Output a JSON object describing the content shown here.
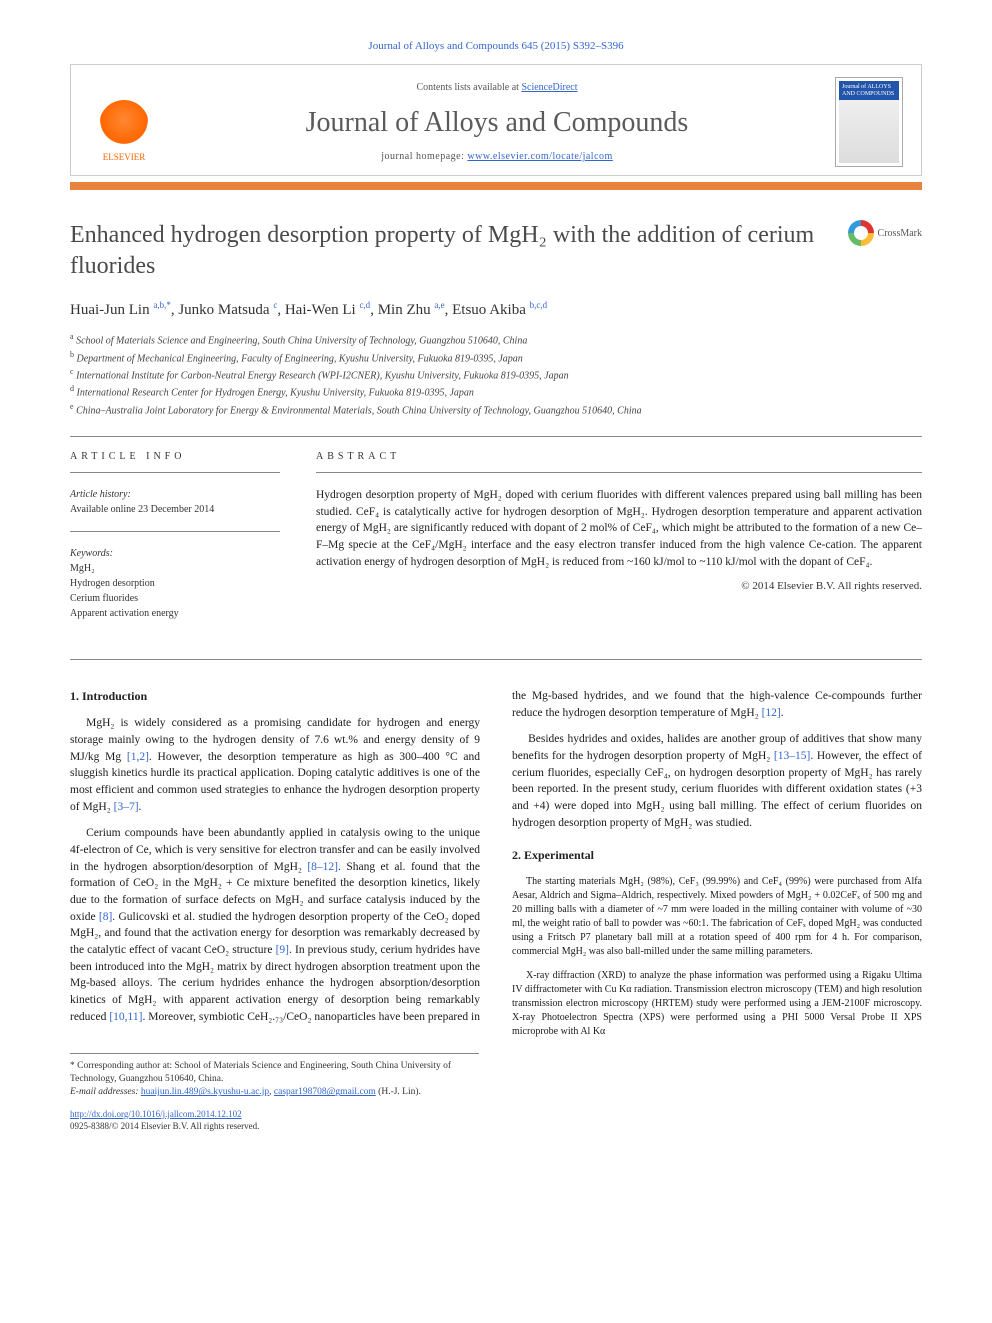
{
  "header": {
    "citation": "Journal of Alloys and Compounds 645 (2015) S392–S396",
    "contents_prefix": "Contents lists available at ",
    "contents_link": "ScienceDirect",
    "journal_name": "Journal of Alloys and Compounds",
    "homepage_prefix": "journal homepage: ",
    "homepage_url": "www.elsevier.com/locate/jalcom",
    "publisher_logo_label": "ELSEVIER",
    "cover_label": "Journal of ALLOYS AND COMPOUNDS"
  },
  "title": "Enhanced hydrogen desorption property of MgH₂ with the addition of cerium fluorides",
  "crossmark_label": "CrossMark",
  "authors_html": "Huai-Jun Lin <sup>a,b,*</sup>, Junko Matsuda <sup>c</sup>, Hai-Wen Li <sup>c,d</sup>, Min Zhu <sup>a,e</sup>, Etsuo Akiba <sup>b,c,d</sup>",
  "affiliations": [
    "a School of Materials Science and Engineering, South China University of Technology, Guangzhou 510640, China",
    "b Department of Mechanical Engineering, Faculty of Engineering, Kyushu University, Fukuoka 819-0395, Japan",
    "c International Institute for Carbon-Neutral Energy Research (WPI-I2CNER), Kyushu University, Fukuoka 819-0395, Japan",
    "d International Research Center for Hydrogen Energy, Kyushu University, Fukuoka 819-0395, Japan",
    "e China–Australia Joint Laboratory for Energy & Environmental Materials, South China University of Technology, Guangzhou 510640, China"
  ],
  "article_info": {
    "heading": "ARTICLE INFO",
    "history_label": "Article history:",
    "history_value": "Available online 23 December 2014",
    "keywords_label": "Keywords:",
    "keywords": [
      "MgH₂",
      "Hydrogen desorption",
      "Cerium fluorides",
      "Apparent activation energy"
    ]
  },
  "abstract": {
    "heading": "ABSTRACT",
    "text": "Hydrogen desorption property of MgH₂ doped with cerium fluorides with different valences prepared using ball milling has been studied. CeF₄ is catalytically active for hydrogen desorption of MgH₂. Hydrogen desorption temperature and apparent activation energy of MgH₂ are significantly reduced with dopant of 2 mol% of CeF₄, which might be attributed to the formation of a new Ce–F–Mg specie at the CeF₄/MgH₂ interface and the easy electron transfer induced from the high valence Ce-cation. The apparent activation energy of hydrogen desorption of MgH₂ is reduced from ~160 kJ/mol to ~110 kJ/mol with the dopant of CeF₄.",
    "copyright": "© 2014 Elsevier B.V. All rights reserved."
  },
  "sections": {
    "intro_heading": "1. Introduction",
    "intro_p1": "MgH₂ is widely considered as a promising candidate for hydrogen and energy storage mainly owing to the hydrogen density of 7.6 wt.% and energy density of 9 MJ/kg Mg [1,2]. However, the desorption temperature as high as 300–400 °C and sluggish kinetics hurdle its practical application. Doping catalytic additives is one of the most efficient and common used strategies to enhance the hydrogen desorption property of MgH₂ [3–7].",
    "intro_p2": "Cerium compounds have been abundantly applied in catalysis owing to the unique 4f-electron of Ce, which is very sensitive for electron transfer and can be easily involved in the hydrogen absorption/desorption of MgH₂ [8–12]. Shang et al. found that the formation of CeO₂ in the MgH₂ + Ce mixture benefited the desorption kinetics, likely due to the formation of surface defects on MgH₂ and surface catalysis induced by the oxide [8]. Gulicovski et al. studied the hydrogen desorption property of the CeO₂ doped MgH₂, and found that the activation energy for desorption was remarkably decreased by the catalytic effect of vacant CeO₂ structure [9]. In previous study, cerium hydrides have been introduced into the MgH₂ matrix by direct hydrogen absorption treatment upon the Mg-based alloys. The cerium hydrides enhance the hydrogen absorption/desorption kinetics of MgH₂ with apparent activation energy of desorption being remarkably reduced [10,11]. Moreover, symbiotic CeH₂.₇₃/CeO₂ nanoparticles have been prepared in the Mg-based hydrides, and we found that the high-valence Ce-compounds further reduce the hydrogen desorption temperature of MgH₂ [12].",
    "intro_p3": "Besides hydrides and oxides, halides are another group of additives that show many benefits for the hydrogen desorption property of MgH₂ [13–15]. However, the effect of cerium fluorides, especially CeF₄, on hydrogen desorption property of MgH₂ has rarely been reported. In the present study, cerium fluorides with different oxidation states (+3 and +4) were doped into MgH₂ using ball milling. The effect of cerium fluorides on hydrogen desorption property of MgH₂ was studied.",
    "exp_heading": "2. Experimental",
    "exp_p1": "The starting materials MgH₂ (98%), CeF₃ (99.99%) and CeF₄ (99%) were purchased from Alfa Aesar, Aldrich and Sigma–Aldrich, respectively. Mixed powders of MgH₂ + 0.02CeFₓ of 500 mg and 20 milling balls with a diameter of ~7 mm were loaded in the milling container with volume of ~30 ml, the weight ratio of ball to powder was ~60:1. The fabrication of CeFₓ doped MgH₂ was conducted using a Fritsch P7 planetary ball mill at a rotation speed of 400 rpm for 4 h. For comparison, commercial MgH₂ was also ball-milled under the same milling parameters.",
    "exp_p2": "X-ray diffraction (XRD) to analyze the phase information was performed using a Rigaku Ultima IV diffractometer with Cu Kα radiation. Transmission electron microscopy (TEM) and high resolution transmission electron microscopy (HRTEM) study were performed using a JEM-2100F microscopy. X-ray Photoelectron Spectra (XPS) were performed using a PHI 5000 Versal Probe II XPS microprobe with Al Kα"
  },
  "footnote": {
    "corr": "* Corresponding author at: School of Materials Science and Engineering, South China University of Technology, Guangzhou 510640, China.",
    "email_label": "E-mail addresses: ",
    "email1": "huaijun.lin.489@s.kyushu-u.ac.jp",
    "email2": "caspar198708@gmail.com",
    "email_suffix": " (H.-J. Lin).",
    "doi": "http://dx.doi.org/10.1016/j.jallcom.2014.12.102",
    "issn_copyright": "0925-8388/© 2014 Elsevier B.V. All rights reserved."
  },
  "colors": {
    "link": "#3366cc",
    "orange_bar": "#e8833f",
    "elsevier_orange": "#ff6600",
    "text": "#1a1a1a",
    "heading_grey": "#4a4a4a"
  }
}
